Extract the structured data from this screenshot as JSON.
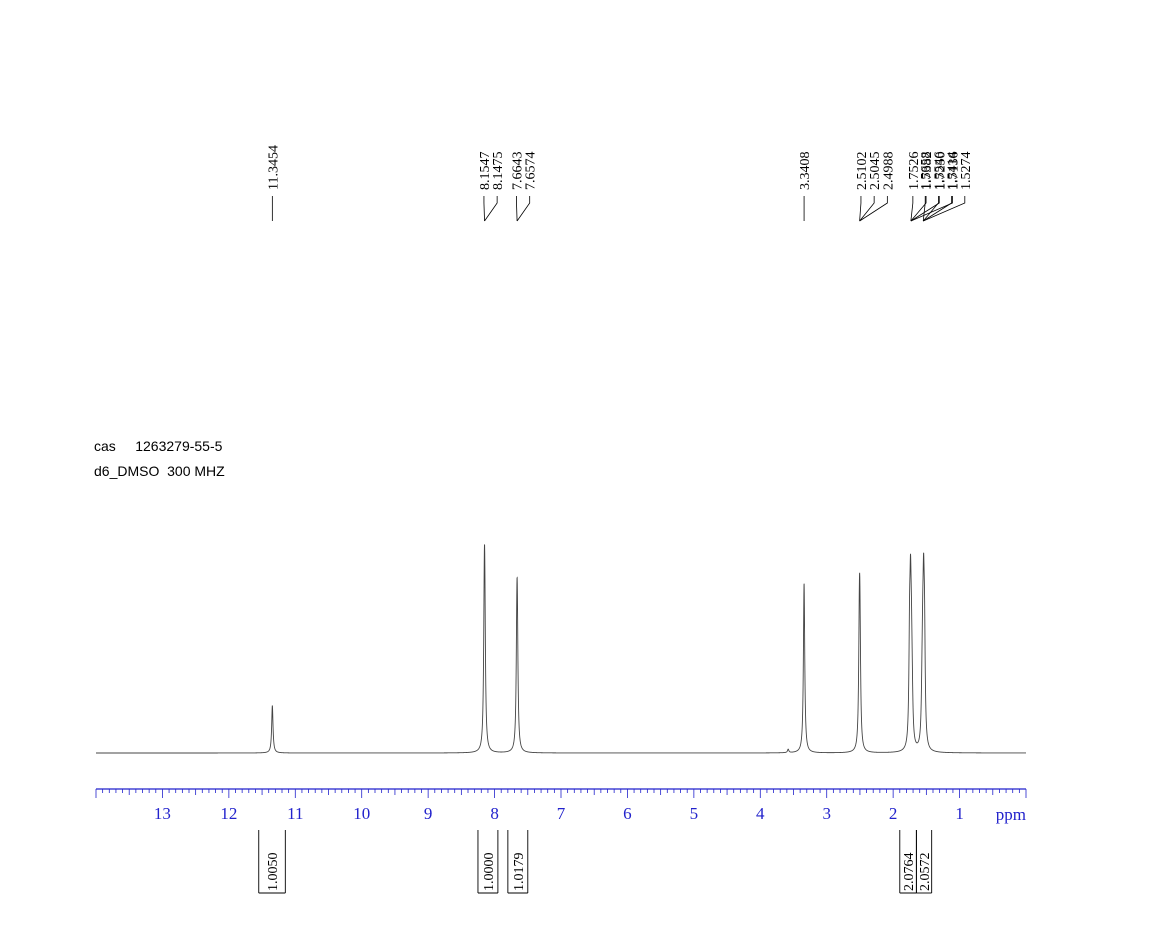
{
  "sample": {
    "cas_line": "cas     1263279-55-5",
    "solvent_line": "d6_DMSO  300 MHZ"
  },
  "chart_data": {
    "type": "line",
    "title": "",
    "xlabel": "ppm",
    "ylabel": "",
    "xlim": [
      14.0,
      0.0
    ],
    "x_ticks": [
      13,
      12,
      11,
      10,
      9,
      8,
      7,
      6,
      5,
      4,
      3,
      2,
      1
    ],
    "x_tick_labels": [
      "13",
      "12",
      "11",
      "10",
      "9",
      "8",
      "7",
      "6",
      "5",
      "4",
      "3",
      "2",
      "1"
    ],
    "grid": false,
    "peaks": [
      {
        "ppm": 11.3454,
        "intensity": 0.28
      },
      {
        "ppm": 8.1547,
        "intensity": 0.68
      },
      {
        "ppm": 8.1475,
        "intensity": 0.66
      },
      {
        "ppm": 7.6643,
        "intensity": 0.57
      },
      {
        "ppm": 7.6574,
        "intensity": 0.55
      },
      {
        "ppm": 3.58,
        "intensity": 0.02
      },
      {
        "ppm": 3.3408,
        "intensity": 1.0
      },
      {
        "ppm": 2.5102,
        "intensity": 0.38
      },
      {
        "ppm": 2.5045,
        "intensity": 0.44
      },
      {
        "ppm": 2.4988,
        "intensity": 0.38
      },
      {
        "ppm": 1.7526,
        "intensity": 0.55
      },
      {
        "ppm": 1.7382,
        "intensity": 0.72
      },
      {
        "ppm": 1.725,
        "intensity": 0.4
      },
      {
        "ppm": 1.7136,
        "intensity": 0.2
      },
      {
        "ppm": 1.5658,
        "intensity": 0.2
      },
      {
        "ppm": 1.5546,
        "intensity": 0.4
      },
      {
        "ppm": 1.5414,
        "intensity": 0.72
      },
      {
        "ppm": 1.5274,
        "intensity": 0.55
      }
    ],
    "peak_label_groups": [
      {
        "labels": [
          "11.3454"
        ],
        "converge_ppm": 11.3454
      },
      {
        "labels": [
          "8.1547",
          "8.1475"
        ],
        "converge_ppm": 8.151
      },
      {
        "labels": [
          "7.6643",
          "7.6574"
        ],
        "converge_ppm": 7.661
      },
      {
        "labels": [
          "3.3408"
        ],
        "converge_ppm": 3.3408
      },
      {
        "labels": [
          "2.5102",
          "2.5045",
          "2.4988"
        ],
        "converge_ppm": 2.5045
      },
      {
        "labels": [
          "1.7526",
          "1.7382",
          "1.7250",
          "1.7136"
        ],
        "converge_ppm": 1.733
      },
      {
        "labels": [
          "1.5658",
          "1.5546",
          "1.5414",
          "1.5274"
        ],
        "converge_ppm": 1.547
      }
    ],
    "integrals": [
      {
        "label": "1.0050",
        "from": 11.55,
        "to": 11.15
      },
      {
        "label": "1.0000",
        "from": 8.25,
        "to": 7.95
      },
      {
        "label": "1.0179",
        "from": 7.8,
        "to": 7.5
      },
      {
        "label": "2.0764",
        "from": 1.9,
        "to": 1.65
      },
      {
        "label": "2.0572",
        "from": 1.65,
        "to": 1.42
      }
    ]
  }
}
